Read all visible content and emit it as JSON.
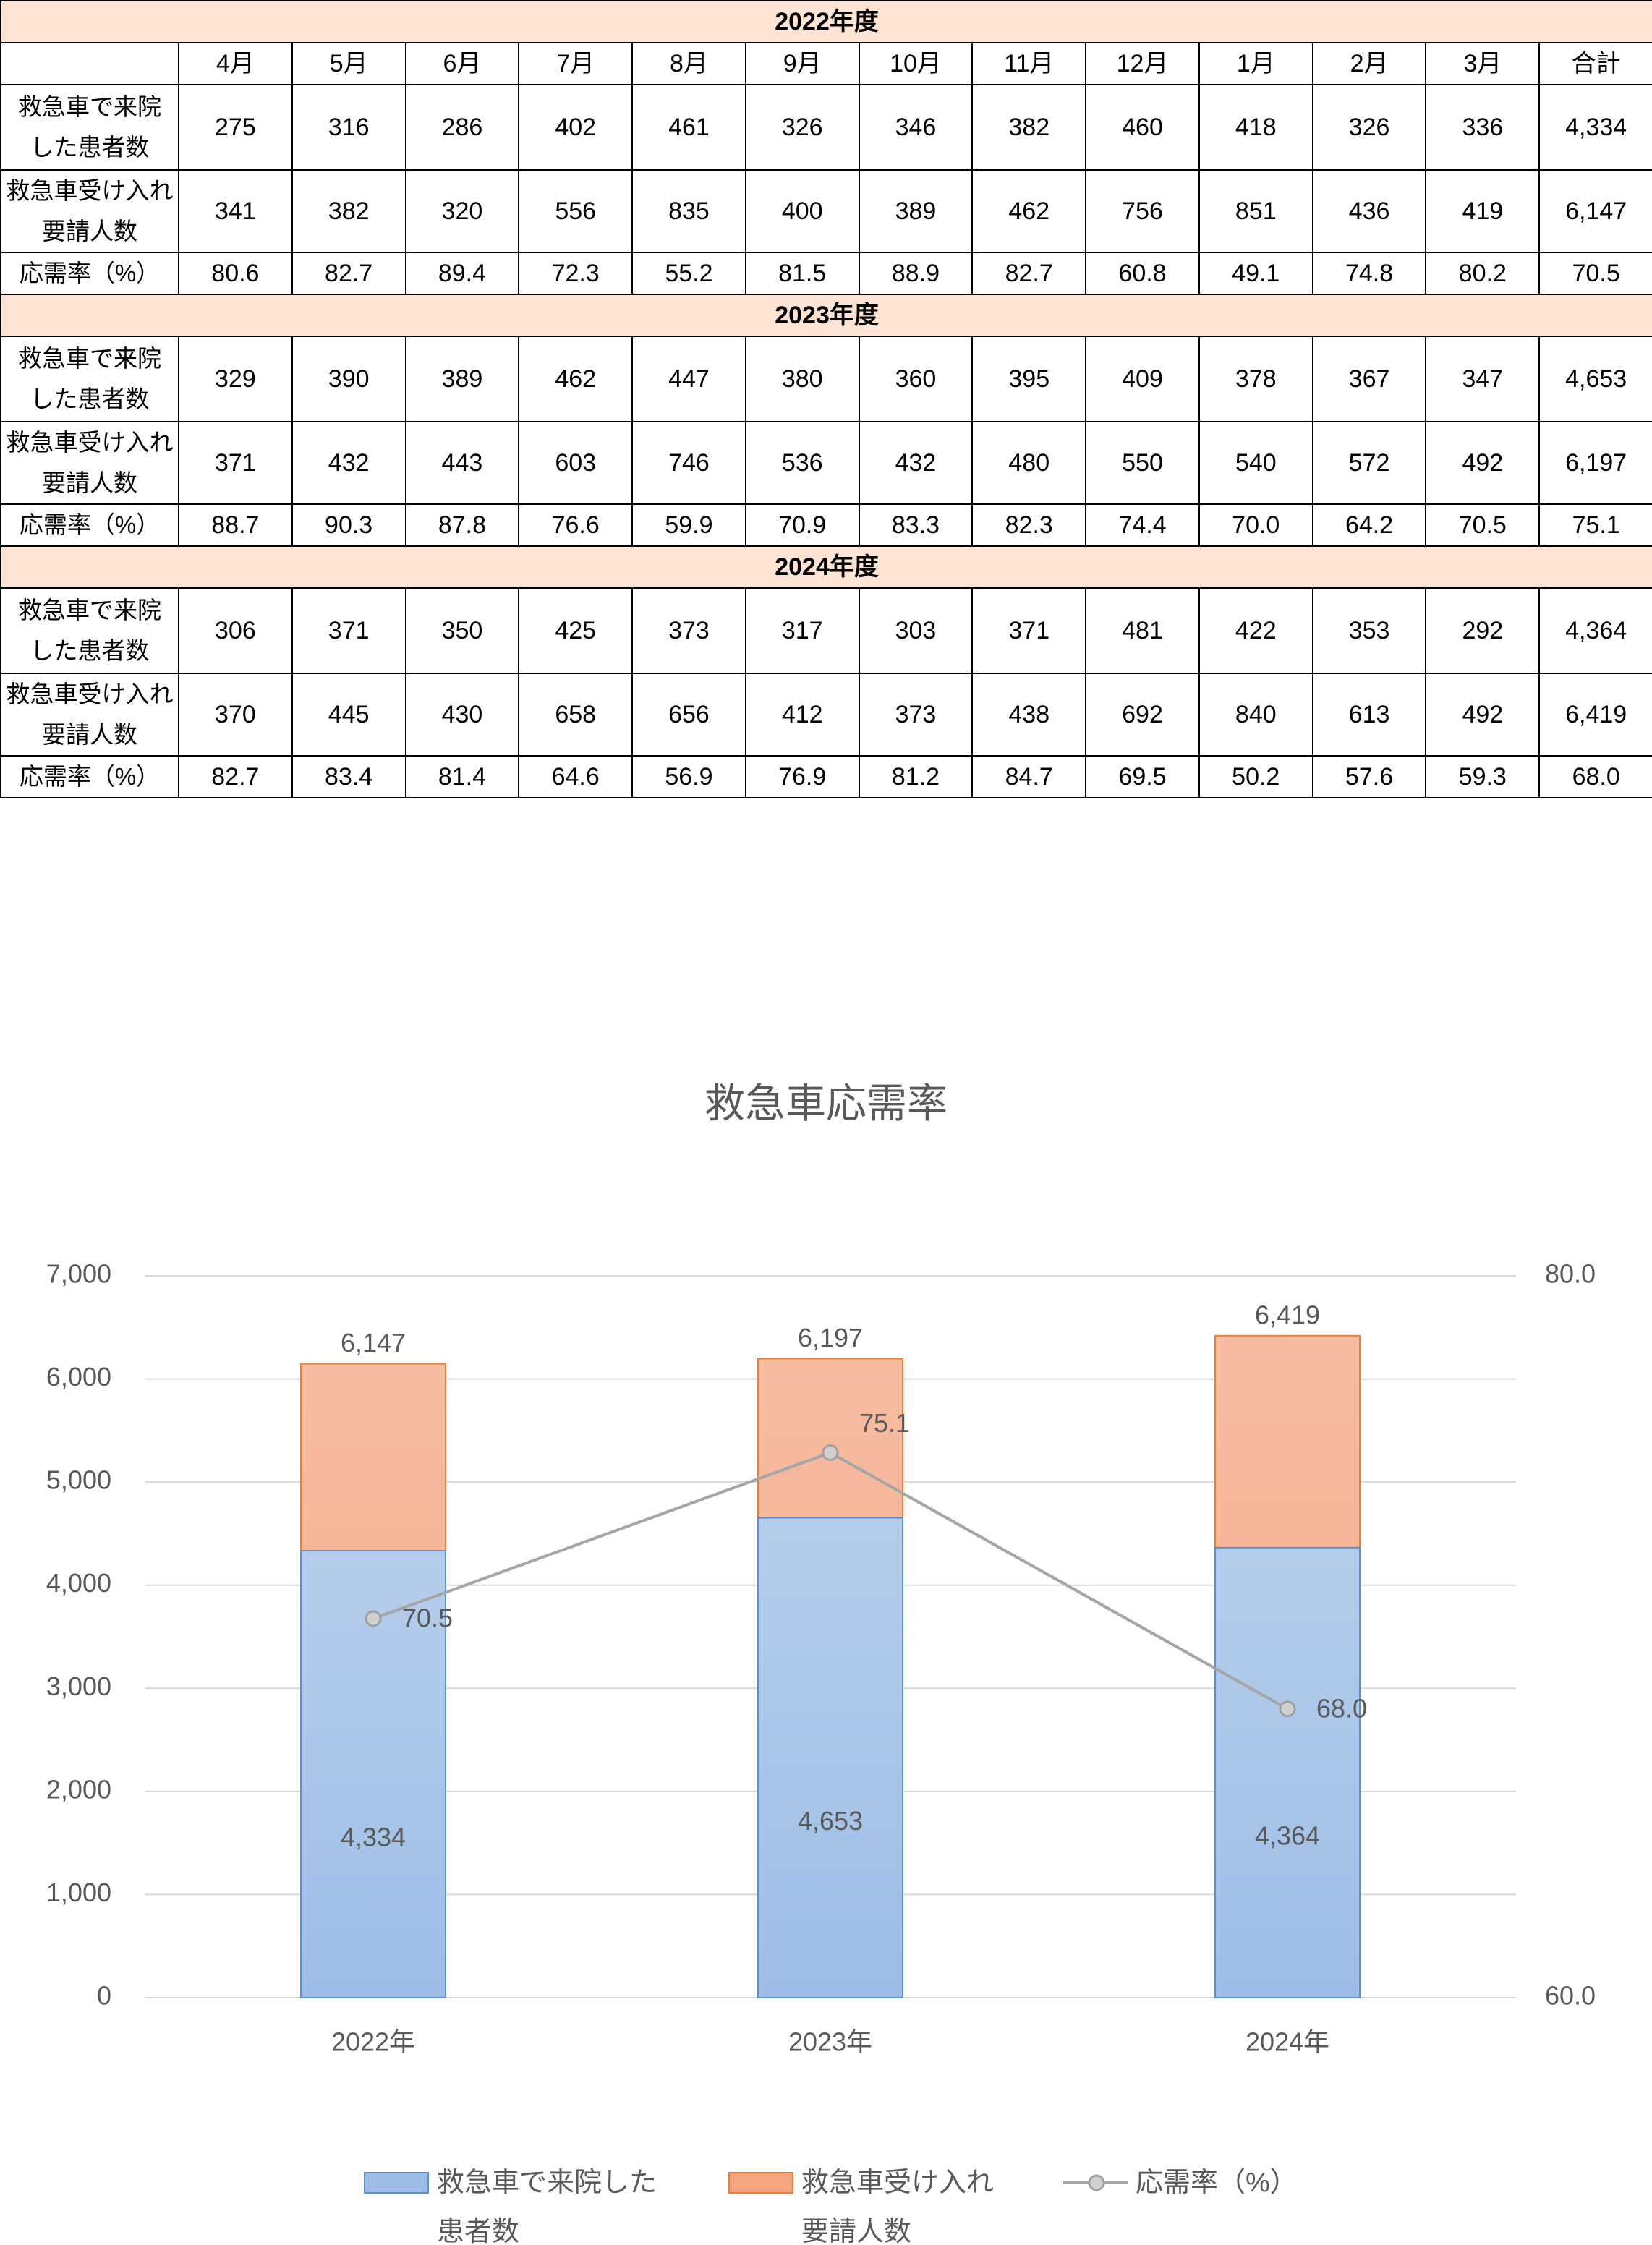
{
  "table": {
    "header": [
      "4月",
      "5月",
      "6月",
      "7月",
      "8月",
      "9月",
      "10月",
      "11月",
      "12月",
      "1月",
      "2月",
      "3月",
      "合計"
    ],
    "sections": [
      {
        "title": "2022年度",
        "rows": [
          {
            "label": [
              "救急車で来院",
              "した患者数"
            ],
            "cells": [
              "275",
              "316",
              "286",
              "402",
              "461",
              "326",
              "346",
              "382",
              "460",
              "418",
              "326",
              "336",
              "4,334"
            ]
          },
          {
            "label": [
              "救急車受け入れ",
              "要請人数"
            ],
            "cells": [
              "341",
              "382",
              "320",
              "556",
              "835",
              "400",
              "389",
              "462",
              "756",
              "851",
              "436",
              "419",
              "6,147"
            ]
          },
          {
            "label": [
              "応需率（%）"
            ],
            "cells": [
              "80.6",
              "82.7",
              "89.4",
              "72.3",
              "55.2",
              "81.5",
              "88.9",
              "82.7",
              "60.8",
              "49.1",
              "74.8",
              "80.2",
              "70.5"
            ]
          }
        ]
      },
      {
        "title": "2023年度",
        "rows": [
          {
            "label": [
              "救急車で来院",
              "した患者数"
            ],
            "cells": [
              "329",
              "390",
              "389",
              "462",
              "447",
              "380",
              "360",
              "395",
              "409",
              "378",
              "367",
              "347",
              "4,653"
            ]
          },
          {
            "label": [
              "救急車受け入れ",
              "要請人数"
            ],
            "cells": [
              "371",
              "432",
              "443",
              "603",
              "746",
              "536",
              "432",
              "480",
              "550",
              "540",
              "572",
              "492",
              "6,197"
            ]
          },
          {
            "label": [
              "応需率（%）"
            ],
            "cells": [
              "88.7",
              "90.3",
              "87.8",
              "76.6",
              "59.9",
              "70.9",
              "83.3",
              "82.3",
              "74.4",
              "70.0",
              "64.2",
              "70.5",
              "75.1"
            ]
          }
        ]
      },
      {
        "title": "2024年度",
        "rows": [
          {
            "label": [
              "救急車で来院",
              "した患者数"
            ],
            "cells": [
              "306",
              "371",
              "350",
              "425",
              "373",
              "317",
              "303",
              "371",
              "481",
              "422",
              "353",
              "292",
              "4,364"
            ]
          },
          {
            "label": [
              "救急車受け入れ",
              "要請人数"
            ],
            "cells": [
              "370",
              "445",
              "430",
              "658",
              "656",
              "412",
              "373",
              "438",
              "692",
              "840",
              "613",
              "492",
              "6,419"
            ]
          },
          {
            "label": [
              "応需率（%）"
            ],
            "cells": [
              "82.7",
              "83.4",
              "81.4",
              "64.6",
              "56.9",
              "76.9",
              "81.2",
              "84.7",
              "69.5",
              "50.2",
              "57.6",
              "59.3",
              "68.0"
            ]
          }
        ]
      }
    ]
  },
  "chart_data": {
    "type": "bar",
    "title": "救急車応需率",
    "categories": [
      "2022年",
      "2023年",
      "2024年"
    ],
    "series": [
      {
        "name": "救急車受け入れ要請人数",
        "color": "#f4a683",
        "values": [
          6147,
          6197,
          6419
        ],
        "value_labels": [
          "6,147",
          "6,197",
          "6,419"
        ]
      },
      {
        "name": "救急車で来院した患者数",
        "color": "#9dbde6",
        "values": [
          4334,
          4653,
          4364
        ],
        "value_labels": [
          "4,334",
          "4,653",
          "4,364"
        ]
      },
      {
        "name": "応需率（%）",
        "type": "line",
        "axis": "y2",
        "color": "#a5a5a5",
        "values": [
          70.5,
          75.1,
          68.0
        ],
        "value_labels": [
          "70.5",
          "75.1",
          "68.0"
        ]
      }
    ],
    "legend_order": [
      1,
      0,
      2
    ],
    "ylim": [
      0,
      7000
    ],
    "yticks": [
      0,
      {
        "value": 1000,
        "label": "1,000"
      },
      {
        "value": 2000,
        "label": "2,000"
      },
      {
        "value": 3000,
        "label": "3,000"
      },
      {
        "value": 4000,
        "label": "4,000"
      },
      {
        "value": 5000,
        "label": "5,000"
      },
      {
        "value": 6000,
        "label": "6,000"
      },
      {
        "value": 7000,
        "label": "7,000"
      }
    ],
    "y2lim": [
      60,
      80
    ],
    "y2ticks": [
      {
        "value": 60,
        "label": "60.0"
      },
      {
        "value": 80,
        "label": "80.0"
      }
    ],
    "grid": true,
    "legend": "bottom"
  }
}
